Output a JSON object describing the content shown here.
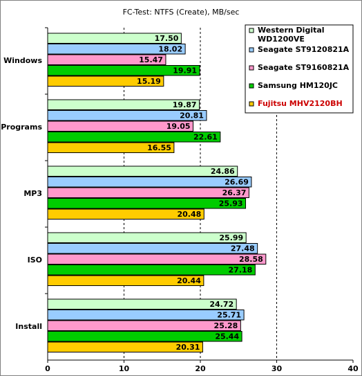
{
  "chart_data": {
    "type": "bar",
    "orientation": "horizontal",
    "title": "FC-Test: NTFS (Create), MB/sec",
    "xlabel": "",
    "ylabel": "",
    "xlim": [
      0,
      40
    ],
    "x_ticks": [
      "0",
      "10",
      "20",
      "30",
      "40"
    ],
    "grid": "dashed vertical lines",
    "legend_position": "top-right",
    "categories": [
      "Windows",
      "Programs",
      "MP3",
      "ISO",
      "Install"
    ],
    "series": [
      {
        "name": "Western Digital WD1200VE",
        "legend_lines": [
          "Western Digital",
          "WD1200VE"
        ],
        "color": "#ccffcc",
        "label_color": "#000000",
        "values": [
          17.5,
          19.87,
          24.86,
          25.99,
          24.72
        ],
        "labels": [
          "17.50",
          "19.87",
          "24.86",
          "25.99",
          "24.72"
        ]
      },
      {
        "name": "Seagate ST9120821A",
        "legend_lines": [
          "Seagate ST9120821A"
        ],
        "color": "#99ccff",
        "label_color": "#000000",
        "values": [
          18.02,
          20.81,
          26.69,
          27.48,
          25.71
        ],
        "labels": [
          "18.02",
          "20.81",
          "26.69",
          "27.48",
          "25.71"
        ]
      },
      {
        "name": "Seagate ST9160821A",
        "legend_lines": [
          "Seagate ST9160821A"
        ],
        "color": "#ff99cc",
        "label_color": "#000000",
        "values": [
          15.47,
          19.05,
          26.37,
          28.58,
          25.28
        ],
        "labels": [
          "15.47",
          "19.05",
          "26.37",
          "28.58",
          "25.28"
        ]
      },
      {
        "name": "Samsung HM120JC",
        "legend_lines": [
          "Samsung HM120JC"
        ],
        "color": "#00cc00",
        "label_color": "#000000",
        "values": [
          19.91,
          22.61,
          25.93,
          27.18,
          25.44
        ],
        "labels": [
          "19.91",
          "22.61",
          "25.93",
          "27.18",
          "25.44"
        ]
      },
      {
        "name": "Fujitsu MHV2120BH",
        "legend_lines": [
          "Fujitsu MHV2120BH"
        ],
        "color": "#ffcc00",
        "label_color": "#cc0000",
        "values": [
          15.19,
          16.55,
          20.48,
          20.44,
          20.31
        ],
        "labels": [
          "15.19",
          "16.55",
          "20.48",
          "20.44",
          "20.31"
        ]
      }
    ]
  }
}
